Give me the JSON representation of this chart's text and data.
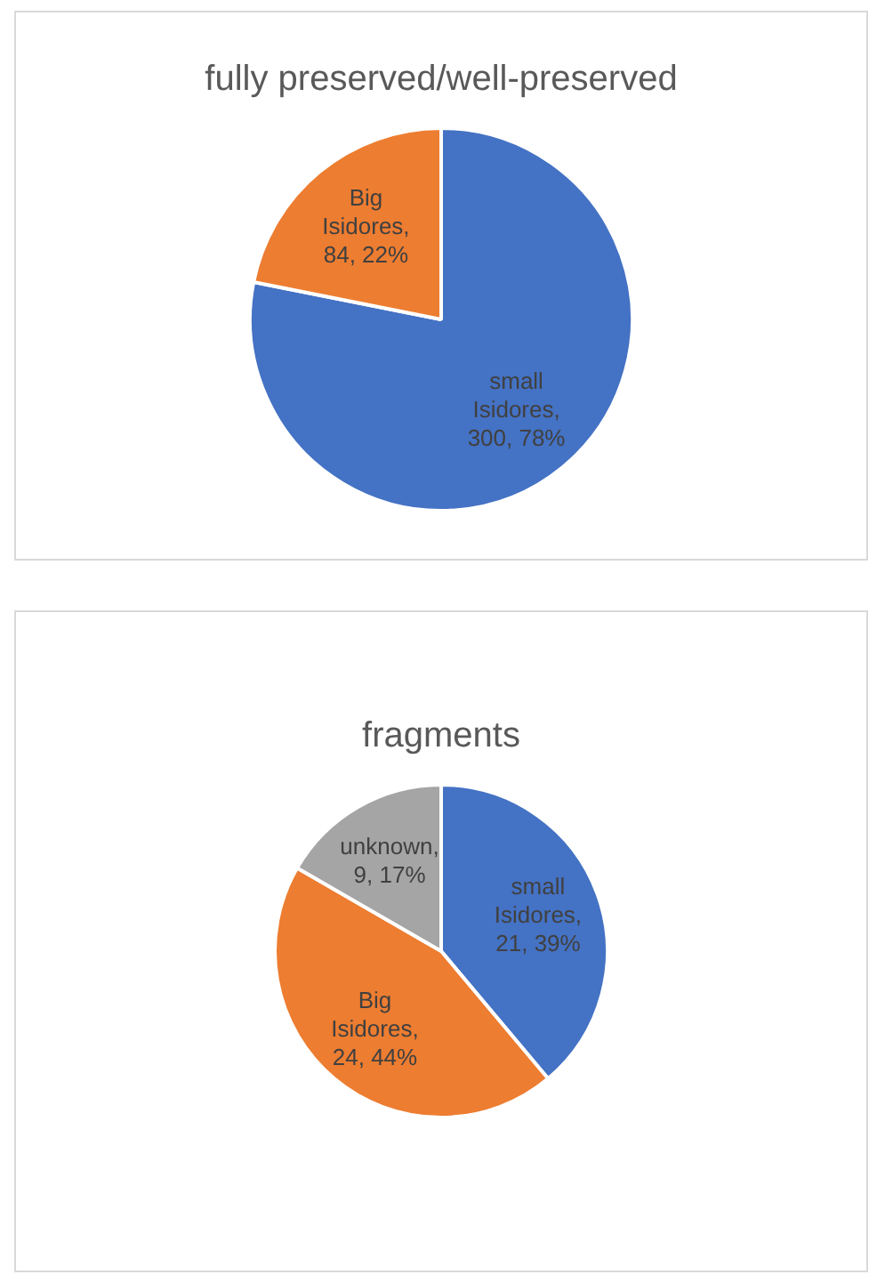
{
  "chart_data": [
    {
      "type": "pie",
      "title": "fully preserved/well-preserved",
      "categories": [
        "small Isidores",
        "Big Isidores"
      ],
      "values": [
        300,
        84
      ],
      "colors": [
        "#4472c4",
        "#ed7d31"
      ],
      "value_labels": [
        ", 300, 78%",
        ", 84, 22%"
      ],
      "legend": false
    },
    {
      "type": "pie",
      "title": "fragments",
      "categories": [
        "small Isidores",
        "Big Isidores",
        "unknown"
      ],
      "values": [
        21,
        24,
        9
      ],
      "colors": [
        "#4472c4",
        "#ed7d31",
        "#a5a5a5"
      ],
      "value_labels": [
        ", 21, 39%",
        ", 24, 44%",
        ", 9, 17%"
      ],
      "legend": false
    }
  ]
}
